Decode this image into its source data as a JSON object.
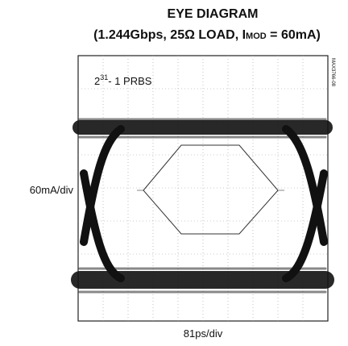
{
  "title": "EYE DIAGRAM",
  "subtitle": {
    "before": "(1.244Gbps, 25Ω LOAD, I",
    "subscript": "MOD",
    "after": " = 60mA)"
  },
  "pattern": {
    "base": "2",
    "exponent": "31",
    "rest": "- 1 PRBS"
  },
  "y_scale": "60mA/div",
  "x_scale": "81ps/div",
  "figure_id": "MAX3766-08"
}
